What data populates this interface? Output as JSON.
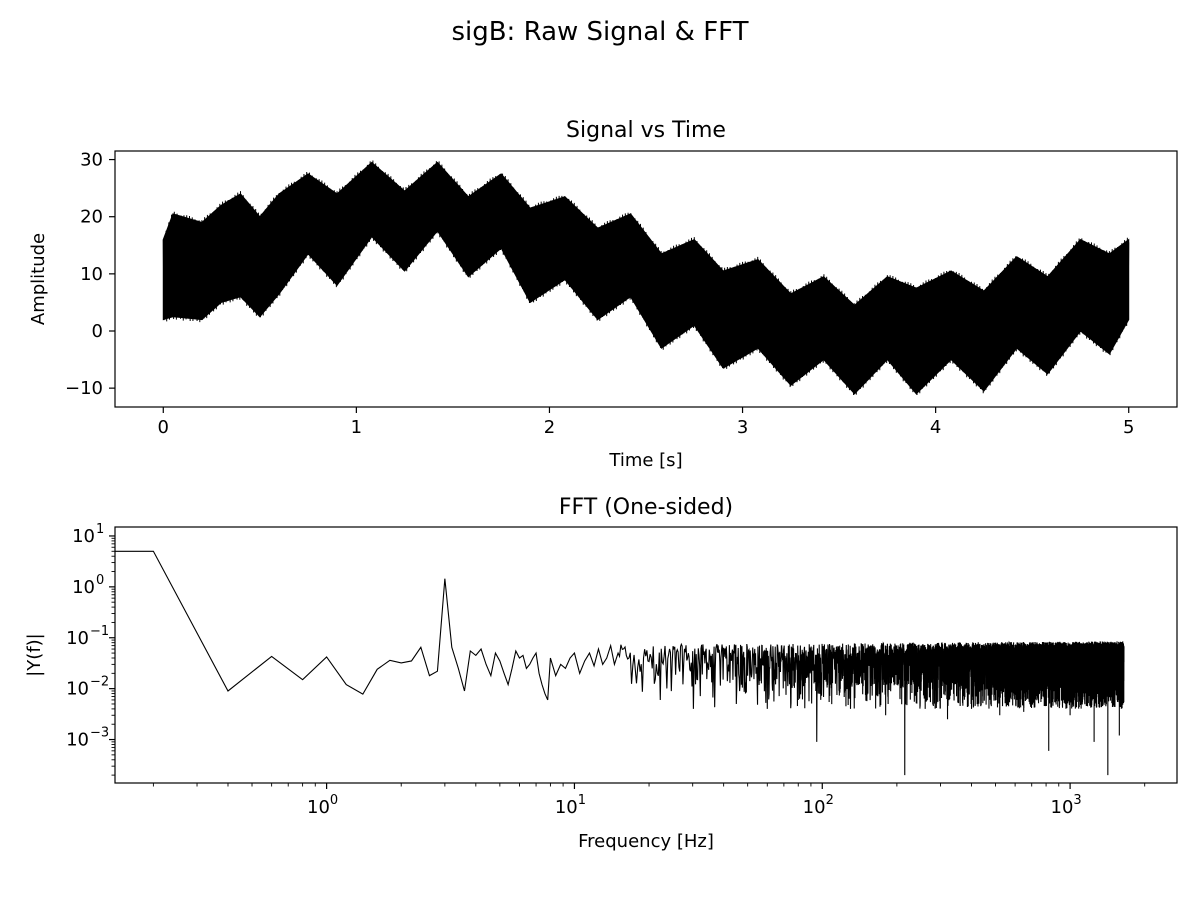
{
  "figure": {
    "suptitle": "sigB: Raw Signal & FFT"
  },
  "chart_data": [
    {
      "type": "line",
      "title": "Signal vs Time",
      "xlabel": "Time [s]",
      "ylabel": "Amplitude",
      "xlim": [
        -0.25,
        5.25
      ],
      "ylim": [
        -13.3,
        31.5
      ],
      "xticks": [
        0,
        1,
        2,
        3,
        4,
        5
      ],
      "xtick_labels": [
        "0",
        "1",
        "2",
        "3",
        "4",
        "5"
      ],
      "yticks": [
        -10,
        0,
        10,
        20,
        30
      ],
      "ytick_labels": [
        "−10",
        "0",
        "10",
        "20",
        "30"
      ],
      "grid": false,
      "color": "#000000",
      "series": [
        {
          "description_of_shape": "dense high-frequency oscillation (filled band) around a slowly varying baseline with a 3 Hz envelope",
          "x": [
            0,
            0.05,
            0.2,
            0.3,
            0.4,
            0.5,
            0.6,
            0.75,
            0.9,
            1.08,
            1.25,
            1.42,
            1.58,
            1.75,
            1.9,
            2.08,
            2.25,
            2.42,
            2.58,
            2.75,
            2.9,
            3.08,
            3.25,
            3.42,
            3.58,
            3.75,
            3.9,
            4.08,
            4.25,
            4.42,
            4.58,
            4.75,
            4.9,
            5.0
          ],
          "upper": [
            16,
            20.5,
            19,
            22,
            24,
            20,
            24,
            27.5,
            24,
            29.5,
            24.5,
            29.5,
            23.5,
            27.5,
            21.5,
            23.5,
            18,
            20.5,
            13.5,
            16,
            10.5,
            12.5,
            6.5,
            9.5,
            4.5,
            9.5,
            7.5,
            10.5,
            7,
            13,
            9.5,
            16,
            13.5,
            16
          ],
          "lower": [
            2,
            2.5,
            2,
            5,
            6,
            2.5,
            6.5,
            13.5,
            8,
            16.5,
            10.5,
            17.5,
            9.5,
            14.5,
            5,
            9,
            2,
            6,
            -3,
            1,
            -6.5,
            -3,
            -9.5,
            -5,
            -11,
            -5,
            -11,
            -5,
            -10.5,
            -3,
            -7.5,
            0,
            -4,
            2
          ]
        }
      ]
    },
    {
      "type": "line",
      "title": "FFT (One-sided)",
      "xlabel": "Frequency [Hz]",
      "ylabel": "|Y(f)|",
      "xscale": "log",
      "yscale": "log",
      "xlim": [
        0.14,
        2700
      ],
      "ylim": [
        0.00014,
        15
      ],
      "xticks": [
        1,
        10,
        100,
        1000
      ],
      "xtick_labels": [
        {
          "base": "10",
          "exp": "0"
        },
        {
          "base": "10",
          "exp": "1"
        },
        {
          "base": "10",
          "exp": "2"
        },
        {
          "base": "10",
          "exp": "3"
        }
      ],
      "yticks": [
        0.001,
        0.01,
        0.1,
        1,
        10
      ],
      "ytick_labels": [
        {
          "base": "10",
          "exp": "−3"
        },
        {
          "base": "10",
          "exp": "−2"
        },
        {
          "base": "10",
          "exp": "−1"
        },
        {
          "base": "10",
          "exp": "0"
        },
        {
          "base": "10",
          "exp": "1"
        }
      ],
      "grid": false,
      "color": "#000000",
      "series": [
        {
          "x": [
            0.14,
            0.2,
            0.4,
            0.6,
            0.8,
            1.0,
            1.2,
            1.4,
            1.6,
            1.8,
            2.0,
            2.2,
            2.4,
            2.6,
            2.8,
            3.0,
            3.2,
            3.4,
            3.6,
            3.8,
            4.0,
            4.2,
            4.4,
            4.6,
            4.8,
            5.0,
            5.2,
            5.4,
            5.6,
            5.8,
            6.0,
            6.2,
            6.4,
            6.6,
            6.8,
            7.0,
            7.2,
            7.4,
            7.6,
            7.8,
            8.0,
            8.4,
            8.8,
            9.2,
            9.6,
            10.0,
            10.5,
            11,
            11.5,
            12,
            12.5,
            13,
            13.5,
            14,
            14.5,
            15
          ],
          "y": [
            5,
            5,
            0.009,
            0.043,
            0.015,
            0.042,
            0.012,
            0.0078,
            0.024,
            0.036,
            0.032,
            0.035,
            0.065,
            0.018,
            0.022,
            1.45,
            0.065,
            0.025,
            0.009,
            0.055,
            0.045,
            0.06,
            0.03,
            0.018,
            0.05,
            0.035,
            0.02,
            0.012,
            0.025,
            0.055,
            0.04,
            0.045,
            0.025,
            0.03,
            0.04,
            0.05,
            0.02,
            0.012,
            0.008,
            0.006,
            0.04,
            0.018,
            0.03,
            0.025,
            0.04,
            0.05,
            0.02,
            0.035,
            0.05,
            0.028,
            0.06,
            0.03,
            0.04,
            0.07,
            0.03,
            0.05
          ]
        }
      ],
      "noise_band": {
        "description_of_shape": "dense jagged spectrum from 15 Hz to ~1650 Hz with floor near 0.03 and deep dips",
        "x_start": 15,
        "x_end": 1650,
        "typical_top": 0.075,
        "typical_low": 0.012,
        "deep_dips": [
          {
            "x": 22,
            "y": 0.006
          },
          {
            "x": 30,
            "y": 0.004
          },
          {
            "x": 45,
            "y": 0.005
          },
          {
            "x": 60,
            "y": 0.004
          },
          {
            "x": 80,
            "y": 0.006
          },
          {
            "x": 95,
            "y": 0.0009
          },
          {
            "x": 130,
            "y": 0.004
          },
          {
            "x": 180,
            "y": 0.003
          },
          {
            "x": 215,
            "y": 0.0002
          },
          {
            "x": 260,
            "y": 0.004
          },
          {
            "x": 320,
            "y": 0.0025
          },
          {
            "x": 400,
            "y": 0.004
          },
          {
            "x": 520,
            "y": 0.003
          },
          {
            "x": 650,
            "y": 0.0035
          },
          {
            "x": 820,
            "y": 0.0006
          },
          {
            "x": 1000,
            "y": 0.003
          },
          {
            "x": 1250,
            "y": 0.0009
          },
          {
            "x": 1420,
            "y": 0.0002
          },
          {
            "x": 1580,
            "y": 0.0012
          }
        ]
      }
    }
  ]
}
